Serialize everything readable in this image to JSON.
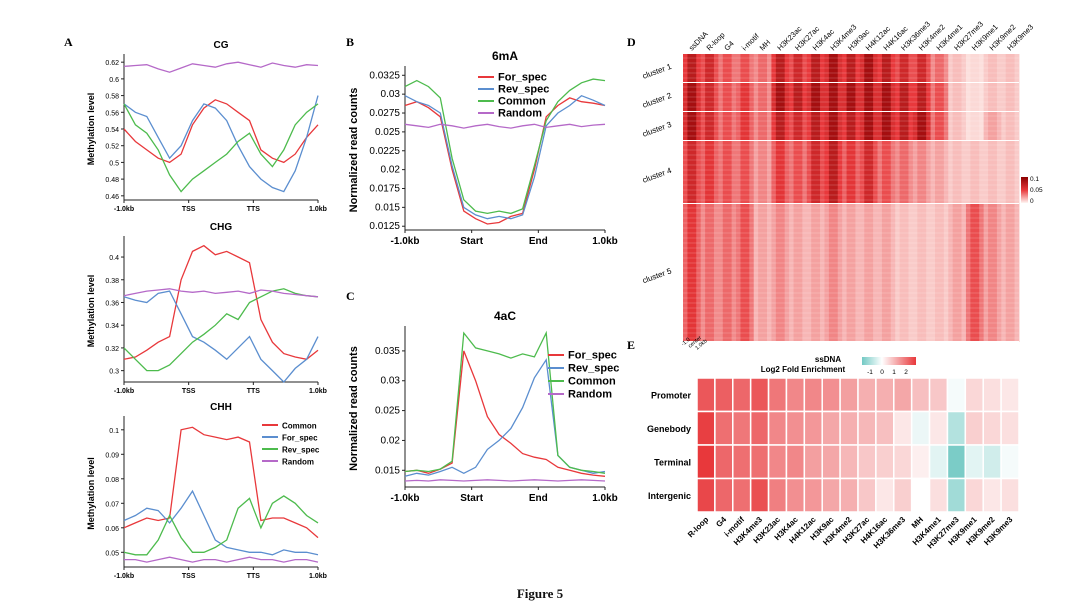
{
  "figure": {
    "caption": "Figure 5"
  },
  "colors": {
    "red": "#e8383b",
    "blue": "#5b8ecf",
    "green": "#4dbb4d",
    "purple": "#b569c8",
    "heat_dark": "#8b0000",
    "heat_light": "#fff5f2",
    "div_neg": "#72c9c4",
    "div_pos": "#e8383b"
  },
  "chart_data": [
    {
      "panel": "A",
      "title": "CG",
      "type": "line",
      "ylabel": "Methylation level",
      "xticks": [
        "-1.0kb",
        "TSS",
        "TTS",
        "1.0kb"
      ],
      "yticks": [
        0.46,
        0.48,
        0.5,
        0.52,
        0.54,
        0.56,
        0.58,
        0.6,
        0.62
      ],
      "ylim": [
        0.455,
        0.625
      ],
      "series": [
        {
          "name": "Common",
          "color": "#e8383b",
          "values": [
            0.54,
            0.525,
            0.515,
            0.505,
            0.5,
            0.51,
            0.545,
            0.565,
            0.575,
            0.57,
            0.56,
            0.55,
            0.515,
            0.505,
            0.5,
            0.51,
            0.53,
            0.545
          ]
        },
        {
          "name": "For_spec",
          "color": "#5b8ecf",
          "values": [
            0.57,
            0.56,
            0.555,
            0.53,
            0.505,
            0.52,
            0.55,
            0.57,
            0.565,
            0.55,
            0.52,
            0.495,
            0.48,
            0.47,
            0.465,
            0.49,
            0.53,
            0.58
          ]
        },
        {
          "name": "Rev_spec",
          "color": "#4dbb4d",
          "values": [
            0.57,
            0.545,
            0.535,
            0.515,
            0.485,
            0.465,
            0.48,
            0.49,
            0.5,
            0.51,
            0.525,
            0.535,
            0.51,
            0.495,
            0.515,
            0.545,
            0.56,
            0.57
          ]
        },
        {
          "name": "Random",
          "color": "#b569c8",
          "values": [
            0.615,
            0.616,
            0.617,
            0.612,
            0.608,
            0.613,
            0.618,
            0.616,
            0.614,
            0.618,
            0.62,
            0.617,
            0.614,
            0.619,
            0.616,
            0.614,
            0.617,
            0.616
          ]
        }
      ]
    },
    {
      "panel": "",
      "title": "CHG",
      "type": "line",
      "ylabel": "Methylation level",
      "xticks": [
        "-1.0kb",
        "TSS",
        "TTS",
        "1.0kb"
      ],
      "yticks": [
        0.3,
        0.32,
        0.34,
        0.36,
        0.38,
        0.4
      ],
      "ylim": [
        0.29,
        0.415
      ],
      "series": [
        {
          "name": "Common",
          "color": "#e8383b",
          "values": [
            0.31,
            0.312,
            0.318,
            0.325,
            0.33,
            0.38,
            0.405,
            0.41,
            0.402,
            0.405,
            0.4,
            0.395,
            0.345,
            0.325,
            0.315,
            0.312,
            0.31,
            0.318
          ]
        },
        {
          "name": "For_spec",
          "color": "#5b8ecf",
          "values": [
            0.365,
            0.362,
            0.36,
            0.368,
            0.37,
            0.35,
            0.33,
            0.325,
            0.318,
            0.31,
            0.32,
            0.33,
            0.31,
            0.3,
            0.29,
            0.302,
            0.31,
            0.33
          ]
        },
        {
          "name": "Rev_spec",
          "color": "#4dbb4d",
          "values": [
            0.32,
            0.31,
            0.3,
            0.3,
            0.305,
            0.315,
            0.325,
            0.332,
            0.34,
            0.35,
            0.345,
            0.36,
            0.365,
            0.37,
            0.372,
            0.368,
            0.366,
            0.365
          ]
        },
        {
          "name": "Random",
          "color": "#b569c8",
          "values": [
            0.366,
            0.368,
            0.37,
            0.371,
            0.372,
            0.37,
            0.369,
            0.37,
            0.368,
            0.369,
            0.37,
            0.368,
            0.371,
            0.37,
            0.368,
            0.367,
            0.366,
            0.365
          ]
        }
      ]
    },
    {
      "panel": "",
      "title": "CHH",
      "type": "line",
      "ylabel": "Methylation level",
      "xticks": [
        "-1.0kb",
        "TSS",
        "TTS",
        "1.0kb"
      ],
      "yticks": [
        0.05,
        0.06,
        0.07,
        0.08,
        0.09,
        0.1
      ],
      "ylim": [
        0.044,
        0.104
      ],
      "legend": [
        "Common",
        "For_spec",
        "Rev_spec",
        "Random"
      ],
      "series": [
        {
          "name": "Common",
          "color": "#e8383b",
          "values": [
            0.06,
            0.062,
            0.064,
            0.063,
            0.064,
            0.1,
            0.101,
            0.098,
            0.097,
            0.096,
            0.097,
            0.095,
            0.063,
            0.064,
            0.064,
            0.062,
            0.06,
            0.056
          ]
        },
        {
          "name": "For_spec",
          "color": "#5b8ecf",
          "values": [
            0.063,
            0.065,
            0.068,
            0.067,
            0.062,
            0.068,
            0.075,
            0.065,
            0.055,
            0.052,
            0.051,
            0.05,
            0.05,
            0.049,
            0.051,
            0.05,
            0.05,
            0.049
          ]
        },
        {
          "name": "Rev_spec",
          "color": "#4dbb4d",
          "values": [
            0.05,
            0.049,
            0.049,
            0.055,
            0.065,
            0.056,
            0.05,
            0.05,
            0.052,
            0.055,
            0.068,
            0.072,
            0.06,
            0.07,
            0.073,
            0.07,
            0.065,
            0.062
          ]
        },
        {
          "name": "Random",
          "color": "#b569c8",
          "values": [
            0.047,
            0.047,
            0.046,
            0.047,
            0.048,
            0.047,
            0.046,
            0.047,
            0.047,
            0.046,
            0.047,
            0.048,
            0.047,
            0.047,
            0.046,
            0.047,
            0.047,
            0.046
          ]
        }
      ]
    },
    {
      "panel": "B",
      "title": "6mA",
      "type": "line",
      "ylabel": "Normalized read counts",
      "xticks": [
        "-1.0kb",
        "Start",
        "End",
        "1.0kb"
      ],
      "yticks": [
        0.0125,
        0.015,
        0.0175,
        0.02,
        0.0225,
        0.025,
        0.0275,
        0.03,
        0.0325
      ],
      "ylim": [
        0.012,
        0.0332
      ],
      "legend": [
        "For_spec",
        "Rev_spec",
        "Common",
        "Random"
      ],
      "series": [
        {
          "name": "For_spec",
          "color": "#e8383b",
          "values": [
            0.0285,
            0.029,
            0.0282,
            0.027,
            0.02,
            0.0145,
            0.0135,
            0.0128,
            0.013,
            0.0138,
            0.0142,
            0.02,
            0.027,
            0.0285,
            0.0295,
            0.029,
            0.0288,
            0.0285
          ]
        },
        {
          "name": "Rev_spec",
          "color": "#5b8ecf",
          "values": [
            0.0298,
            0.029,
            0.0285,
            0.0275,
            0.0205,
            0.015,
            0.014,
            0.0135,
            0.0138,
            0.0135,
            0.014,
            0.019,
            0.0258,
            0.0275,
            0.0285,
            0.0298,
            0.0292,
            0.0285
          ]
        },
        {
          "name": "Common",
          "color": "#4dbb4d",
          "values": [
            0.031,
            0.0318,
            0.031,
            0.0295,
            0.0215,
            0.016,
            0.0145,
            0.0142,
            0.0145,
            0.0142,
            0.0148,
            0.0205,
            0.0265,
            0.029,
            0.0305,
            0.0315,
            0.032,
            0.0318
          ]
        },
        {
          "name": "Random",
          "color": "#b569c8",
          "values": [
            0.026,
            0.0258,
            0.0256,
            0.026,
            0.0258,
            0.0255,
            0.0258,
            0.026,
            0.0257,
            0.0255,
            0.0258,
            0.026,
            0.0256,
            0.0258,
            0.026,
            0.0257,
            0.0259,
            0.026
          ]
        }
      ]
    },
    {
      "panel": "C",
      "title": "4aC",
      "type": "line",
      "ylabel": "Normalized read counts",
      "xticks": [
        "-1.0kb",
        "Start",
        "End",
        "1.0kb"
      ],
      "yticks": [
        0.015,
        0.02,
        0.025,
        0.03,
        0.035
      ],
      "ylim": [
        0.0122,
        0.0385
      ],
      "legend": [
        "For_spec",
        "Rev_spec",
        "Common",
        "Random"
      ],
      "series": [
        {
          "name": "For_spec",
          "color": "#e8383b",
          "values": [
            0.0148,
            0.015,
            0.0145,
            0.0152,
            0.0162,
            0.035,
            0.03,
            0.024,
            0.021,
            0.0195,
            0.0178,
            0.0172,
            0.0168,
            0.0155,
            0.015,
            0.0145,
            0.0142,
            0.014
          ]
        },
        {
          "name": "Rev_spec",
          "color": "#5b8ecf",
          "values": [
            0.014,
            0.0145,
            0.0142,
            0.0148,
            0.0155,
            0.0145,
            0.0155,
            0.0185,
            0.02,
            0.022,
            0.0255,
            0.0305,
            0.0335,
            0.0175,
            0.0155,
            0.015,
            0.0145,
            0.0148
          ]
        },
        {
          "name": "Common",
          "color": "#4dbb4d",
          "values": [
            0.0148,
            0.015,
            0.0148,
            0.0152,
            0.0165,
            0.038,
            0.0355,
            0.035,
            0.0345,
            0.0338,
            0.0345,
            0.034,
            0.038,
            0.0175,
            0.0155,
            0.015,
            0.0148,
            0.0145
          ]
        },
        {
          "name": "Random",
          "color": "#b569c8",
          "values": [
            0.0132,
            0.0133,
            0.0132,
            0.0134,
            0.0133,
            0.0132,
            0.0133,
            0.0134,
            0.0133,
            0.0132,
            0.0133,
            0.0134,
            0.0133,
            0.0132,
            0.0133,
            0.0134,
            0.0133,
            0.0132
          ]
        }
      ]
    },
    {
      "panel": "D",
      "type": "heatmap",
      "title": "",
      "columns": [
        "ssDNA",
        "R-loop",
        "G4",
        "i-motif",
        "MH",
        "H3K23ac",
        "H3K27ac",
        "H3K4ac",
        "H3K4me3",
        "H3K9ac",
        "H4K12ac",
        "H4K16ac",
        "H3K36me3",
        "H3K4me2",
        "H3K4me1",
        "H3K27me3",
        "H3K9me1",
        "H3K9me2",
        "H3K9me3"
      ],
      "rows": [
        "cluster 1",
        "cluster 2",
        "cluster 3",
        "cluster 4",
        "cluster 5"
      ],
      "values": [
        [
          0.09,
          0.08,
          0.06,
          0.06,
          0.05,
          0.09,
          0.08,
          0.09,
          0.1,
          0.09,
          0.1,
          0.09,
          0.08,
          0.08,
          0.05,
          0.02,
          0.01,
          0.02,
          0.02
        ],
        [
          0.1,
          0.08,
          0.06,
          0.07,
          0.05,
          0.1,
          0.09,
          0.1,
          0.1,
          0.1,
          0.1,
          0.1,
          0.09,
          0.09,
          0.06,
          0.02,
          0.01,
          0.02,
          0.02
        ],
        [
          0.1,
          0.08,
          0.06,
          0.07,
          0.05,
          0.09,
          0.08,
          0.09,
          0.1,
          0.09,
          0.1,
          0.1,
          0.09,
          0.1,
          0.06,
          0.02,
          0.01,
          0.03,
          0.02
        ],
        [
          0.08,
          0.07,
          0.06,
          0.06,
          0.04,
          0.07,
          0.06,
          0.08,
          0.09,
          0.07,
          0.08,
          0.06,
          0.05,
          0.04,
          0.03,
          0.02,
          0.02,
          0.02,
          0.02
        ],
        [
          0.07,
          0.05,
          0.05,
          0.06,
          0.03,
          0.04,
          0.03,
          0.03,
          0.04,
          0.03,
          0.03,
          0.03,
          0.02,
          0.02,
          0.02,
          0.03,
          0.06,
          0.04,
          0.03
        ]
      ],
      "colorbar": {
        "ticks": [
          "0.1",
          "0.05",
          "0"
        ],
        "range": [
          0,
          0.1
        ]
      },
      "x_axis": {
        "labels": [
          "-1.0",
          "center",
          "1.0kb"
        ]
      }
    },
    {
      "panel": "E",
      "type": "heatmap",
      "title": "ssDNA",
      "subtitle": "Log2 Fold Enrichment",
      "colorbar": {
        "ticks": [
          "-1",
          "0",
          "1",
          "2"
        ],
        "range": [
          -1.5,
          2.5
        ]
      },
      "rows": [
        "Promoter",
        "Genebody",
        "Terminal",
        "Intergenic"
      ],
      "columns": [
        "R-loop",
        "G4",
        "i-motif",
        "H3K4me3",
        "H3K23ac",
        "H3K4ac",
        "H4K12ac",
        "H3K9ac",
        "H3K4me2",
        "H3K27ac",
        "H4K16ac",
        "H3K36me3",
        "MH",
        "H3K4me1",
        "H3K27me3",
        "H3K9me1",
        "H3K9me2",
        "H3K9me3"
      ],
      "values": [
        [
          2.1,
          2.0,
          1.9,
          2.1,
          1.7,
          1.5,
          1.5,
          1.4,
          1.2,
          1.0,
          1.0,
          1.1,
          0.8,
          0.7,
          -0.1,
          0.5,
          0.4,
          0.3
        ],
        [
          2.4,
          1.8,
          1.7,
          1.9,
          1.5,
          1.4,
          1.3,
          1.1,
          1.0,
          0.9,
          0.8,
          0.3,
          -0.2,
          0.3,
          -0.8,
          0.6,
          0.5,
          0.4
        ],
        [
          2.5,
          1.9,
          1.8,
          1.8,
          1.5,
          1.5,
          1.2,
          1.1,
          0.9,
          0.7,
          0.6,
          0.5,
          0.2,
          -0.3,
          -1.4,
          -0.3,
          -0.5,
          -0.1
        ],
        [
          2.3,
          1.9,
          1.8,
          2.2,
          1.6,
          1.4,
          1.3,
          1.1,
          1.0,
          0.7,
          0.3,
          0.6,
          0.0,
          0.4,
          -1.0,
          0.5,
          0.3,
          0.4
        ]
      ]
    }
  ]
}
